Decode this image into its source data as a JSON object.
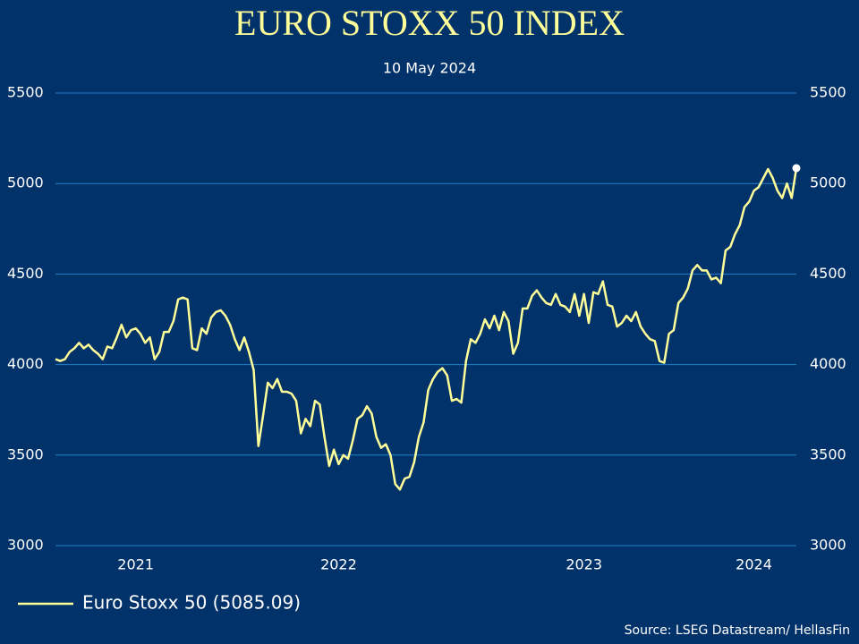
{
  "chart_data": {
    "type": "line",
    "title": "EURO STOXX 50 INDEX",
    "subtitle": "10 May 2024",
    "source": "Source: LSEG Datastream/ HellasFin",
    "categories": [
      null,
      null,
      null,
      null,
      null,
      null,
      null,
      null,
      null,
      null,
      null,
      null,
      null,
      null,
      null,
      null,
      null,
      "2021",
      null,
      null,
      null,
      null,
      null,
      null,
      null,
      null,
      null,
      null,
      null,
      null,
      null,
      null,
      null,
      null,
      null,
      null,
      null,
      null,
      null,
      null,
      null,
      null,
      null,
      null,
      null,
      null,
      null,
      null,
      null,
      null,
      null,
      null,
      null,
      null,
      null,
      null,
      null,
      null,
      null,
      null,
      "2022",
      null,
      null,
      null,
      null,
      null,
      null,
      null,
      null,
      null,
      null,
      null,
      null,
      null,
      null,
      null,
      null,
      null,
      null,
      null,
      null,
      null,
      null,
      null,
      null,
      null,
      null,
      null,
      null,
      null,
      null,
      null,
      null,
      null,
      null,
      null,
      null,
      null,
      null,
      null,
      null,
      null,
      null,
      null,
      null,
      null,
      null,
      null,
      null,
      null,
      null,
      null,
      "2023",
      null,
      null,
      null,
      null,
      null,
      null,
      null,
      null,
      null,
      null,
      null,
      null,
      null,
      null,
      null,
      null,
      null,
      null,
      null,
      null,
      null,
      null,
      null,
      null,
      null,
      null,
      null,
      null,
      null,
      null,
      null,
      null,
      null,
      null,
      null,
      "2024",
      null,
      null,
      null,
      null,
      null,
      null,
      null,
      null,
      null
    ],
    "series": [
      {
        "name": "Euro Stoxx 50 (5085.09)",
        "color": "#ffff99",
        "values": [
          4030,
          4020,
          4030,
          4070,
          4090,
          4120,
          4090,
          4110,
          4080,
          4060,
          4030,
          4100,
          4090,
          4150,
          4220,
          4150,
          4190,
          4200,
          4170,
          4120,
          4150,
          4030,
          4070,
          4180,
          4180,
          4240,
          4360,
          4370,
          4360,
          4090,
          4080,
          4200,
          4170,
          4260,
          4290,
          4300,
          4270,
          4220,
          4140,
          4080,
          4150,
          4070,
          3970,
          3550,
          3720,
          3900,
          3870,
          3920,
          3850,
          3850,
          3840,
          3800,
          3620,
          3700,
          3660,
          3800,
          3780,
          3600,
          3440,
          3530,
          3450,
          3500,
          3480,
          3580,
          3700,
          3720,
          3770,
          3730,
          3600,
          3540,
          3560,
          3500,
          3340,
          3310,
          3370,
          3380,
          3460,
          3600,
          3680,
          3860,
          3920,
          3960,
          3980,
          3940,
          3800,
          3810,
          3790,
          4020,
          4140,
          4120,
          4170,
          4250,
          4200,
          4270,
          4190,
          4290,
          4240,
          4060,
          4120,
          4310,
          4310,
          4380,
          4410,
          4370,
          4340,
          4330,
          4390,
          4330,
          4320,
          4290,
          4390,
          4270,
          4390,
          4230,
          4400,
          4390,
          4460,
          4330,
          4320,
          4210,
          4230,
          4270,
          4240,
          4290,
          4210,
          4170,
          4140,
          4130,
          4020,
          4010,
          4170,
          4190,
          4340,
          4370,
          4420,
          4520,
          4550,
          4520,
          4520,
          4470,
          4480,
          4450,
          4630,
          4650,
          4720,
          4770,
          4870,
          4900,
          4960,
          4980,
          5030,
          5080,
          5030,
          4960,
          4920,
          5000,
          4920,
          5085.09
        ]
      }
    ],
    "ylim": [
      3000,
      5500
    ],
    "yticks": [
      3000,
      3500,
      4000,
      4500,
      5000,
      5500
    ],
    "y2lim": [
      3000,
      5500
    ],
    "y2ticks": [
      3000,
      3500,
      4000,
      4500,
      5000,
      5500
    ],
    "grid": true,
    "grid_color": "#1f7fc8",
    "background": "#02326a",
    "marker_last": true,
    "legend": "bottom-left"
  }
}
